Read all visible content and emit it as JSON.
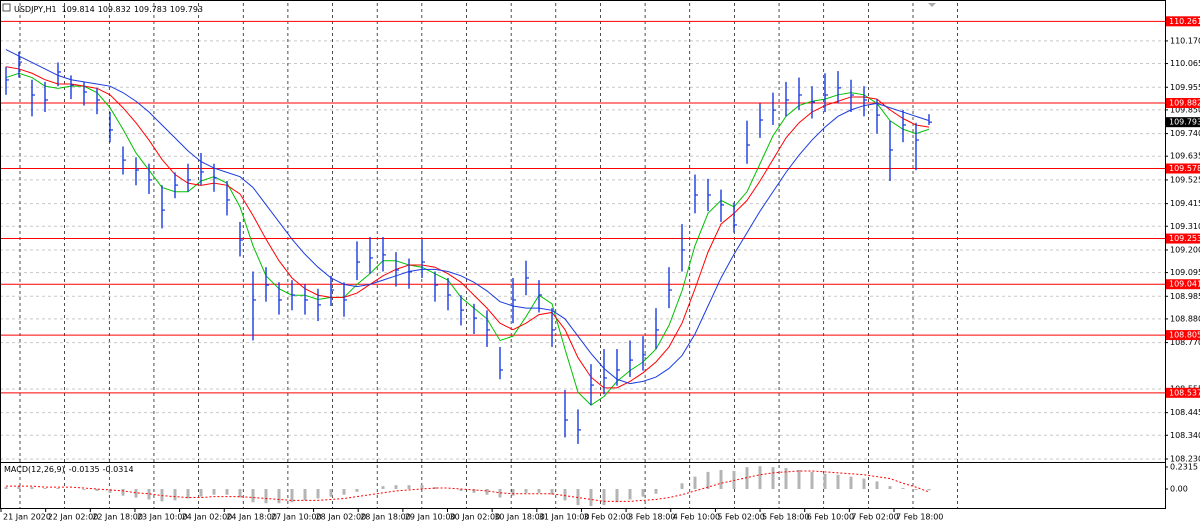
{
  "chart_data": {
    "type": "ohlc",
    "symbol": "USDJPY,H1",
    "ohlc_readout": [
      109.814,
      109.832,
      109.783,
      109.793
    ],
    "color": "#1a3be0",
    "ylim": [
      108.216,
      110.346
    ],
    "yticks": [
      {
        "value": 110.17,
        "label": "110.170"
      },
      110.065,
      109.955,
      {
        "value": 109.85,
        "label": "109.850"
      },
      {
        "value": 109.74,
        "label": "109.740"
      },
      109.635,
      109.525,
      109.415,
      {
        "value": 109.31,
        "label": "109.310"
      },
      {
        "value": 109.2,
        "label": "109.200"
      },
      109.095,
      108.985,
      {
        "value": 108.88,
        "label": "108.880"
      },
      {
        "value": 108.77,
        "label": "108.770"
      },
      108.555,
      108.445,
      {
        "value": 108.34,
        "label": "108.340"
      },
      {
        "value": 108.23,
        "label": "108.230"
      }
    ],
    "grid": true,
    "x_labels": [
      "21 Jan 2020",
      "22 Jan 02:00",
      "22 Jan 18:00",
      "23 Jan 10:00",
      "24 Jan 02:00",
      "24 Jan 18:00",
      "27 Jan 10:00",
      "28 Jan 02:00",
      "28 Jan 18:00",
      "29 Jan 10:00",
      "30 Jan 02:00",
      "30 Jan 18:00",
      "31 Jan 10:00",
      "3 Feb 02:00",
      "3 Feb 18:00",
      "4 Feb 10:00",
      "5 Feb 02:00",
      "5 Feb 18:00",
      "6 Feb 10:00",
      "7 Feb 02:00",
      "7 Feb 18:00"
    ],
    "high": [
      110.05,
      110.12,
      109.99,
      109.98,
      110.07,
      110.01,
      109.98,
      109.95,
      109.84,
      109.68,
      109.63,
      109.6,
      109.5,
      109.56,
      109.6,
      109.65,
      109.6,
      109.52,
      109.33,
      109.1,
      109.12,
      109.05,
      109.06,
      109.04,
      109.02,
      109.08,
      109.05,
      109.24,
      109.26,
      109.26,
      109.19,
      109.16,
      109.25,
      109.1,
      109.07,
      108.99,
      108.95,
      108.92,
      108.75,
      109.07,
      109.15,
      109.06,
      108.93,
      108.55,
      108.46,
      108.67,
      108.74,
      108.74,
      108.78,
      108.8,
      108.93,
      109.12,
      109.32,
      109.55,
      109.53,
      109.48,
      109.42,
      109.8,
      109.88,
      109.93,
      109.98,
      110.0,
      109.96,
      110.02,
      110.03,
      109.99,
      109.96,
      109.9,
      109.8,
      109.85,
      109.79,
      109.83
    ],
    "low": [
      109.92,
      110.0,
      109.82,
      109.84,
      109.96,
      109.9,
      109.87,
      109.83,
      109.7,
      109.55,
      109.5,
      109.46,
      109.3,
      109.44,
      109.47,
      109.5,
      109.47,
      109.36,
      109.17,
      108.78,
      108.96,
      108.9,
      108.92,
      108.9,
      108.87,
      108.94,
      108.89,
      109.06,
      109.09,
      109.1,
      109.03,
      109.02,
      109.07,
      108.96,
      108.92,
      108.85,
      108.81,
      108.75,
      108.6,
      108.86,
      108.99,
      108.91,
      108.75,
      108.33,
      108.3,
      108.48,
      108.53,
      108.57,
      108.61,
      108.64,
      108.74,
      108.93,
      109.1,
      109.37,
      109.38,
      109.33,
      109.28,
      109.6,
      109.72,
      109.78,
      109.82,
      109.85,
      109.81,
      109.84,
      109.88,
      109.84,
      109.82,
      109.74,
      109.52,
      109.7,
      109.57,
      109.78
    ],
    "close": [
      109.989,
      110.072,
      109.919,
      109.896,
      110.026,
      109.965,
      109.933,
      109.896,
      109.757,
      109.617,
      109.571,
      109.525,
      109.385,
      109.501,
      109.525,
      109.562,
      109.534,
      109.432,
      109.246,
      108.968,
      109.037,
      108.968,
      108.991,
      108.968,
      108.945,
      109.014,
      108.968,
      109.144,
      109.163,
      109.177,
      109.107,
      109.098,
      109.144,
      109.037,
      108.991,
      108.921,
      108.884,
      108.829,
      108.643,
      108.968,
      109.07,
      108.991,
      108.829,
      108.411,
      108.365,
      108.573,
      108.606,
      108.643,
      108.689,
      108.713,
      108.829,
      109.014,
      109.2,
      109.455,
      109.455,
      109.409,
      109.316,
      109.687,
      109.803,
      109.849,
      109.896,
      109.919,
      109.887,
      109.919,
      109.952,
      109.919,
      109.896,
      109.826,
      109.664,
      109.78,
      109.71,
      109.793
    ],
    "moving_averages": [
      {
        "color": "#00c000",
        "values": [
          110.0,
          110.02,
          110.0,
          109.96,
          109.95,
          109.96,
          109.96,
          109.93,
          109.86,
          109.76,
          109.65,
          109.57,
          109.49,
          109.47,
          109.47,
          109.52,
          109.54,
          109.51,
          109.4,
          109.22,
          109.08,
          109.02,
          108.99,
          108.99,
          108.97,
          108.98,
          108.98,
          109.04,
          109.09,
          109.15,
          109.15,
          109.13,
          109.12,
          109.09,
          109.06,
          108.98,
          108.93,
          108.88,
          108.78,
          108.8,
          108.89,
          108.99,
          108.95,
          108.74,
          108.54,
          108.48,
          108.52,
          108.59,
          108.64,
          108.68,
          108.74,
          108.85,
          109.01,
          109.22,
          109.37,
          109.43,
          109.4,
          109.47,
          109.6,
          109.73,
          109.82,
          109.87,
          109.89,
          109.9,
          109.92,
          109.93,
          109.92,
          109.88,
          109.8,
          109.76,
          109.74,
          109.76
        ]
      },
      {
        "color": "#ff0000",
        "values": [
          110.05,
          110.04,
          110.02,
          109.99,
          109.97,
          109.97,
          109.96,
          109.95,
          109.92,
          109.86,
          109.79,
          109.71,
          109.62,
          109.55,
          109.51,
          109.5,
          109.51,
          109.5,
          109.46,
          109.36,
          109.25,
          109.15,
          109.07,
          109.02,
          108.99,
          108.98,
          108.98,
          109.0,
          109.04,
          109.08,
          109.11,
          109.13,
          109.13,
          109.12,
          109.09,
          109.05,
          108.99,
          108.93,
          108.86,
          108.83,
          108.86,
          108.9,
          108.91,
          108.83,
          108.7,
          108.61,
          108.56,
          108.56,
          108.59,
          108.63,
          108.68,
          108.75,
          108.86,
          109.02,
          109.19,
          109.32,
          109.37,
          109.43,
          109.52,
          109.62,
          109.72,
          109.79,
          109.84,
          109.87,
          109.89,
          109.91,
          109.91,
          109.9,
          109.85,
          109.81,
          109.78,
          109.77
        ]
      },
      {
        "color": "#1a3be0",
        "values": [
          110.13,
          110.1,
          110.07,
          110.04,
          110.01,
          109.99,
          109.98,
          109.97,
          109.96,
          109.93,
          109.89,
          109.84,
          109.78,
          109.72,
          109.66,
          109.61,
          109.58,
          109.56,
          109.54,
          109.49,
          109.41,
          109.33,
          109.25,
          109.18,
          109.12,
          109.07,
          109.04,
          109.03,
          109.04,
          109.06,
          109.08,
          109.1,
          109.11,
          109.11,
          109.1,
          109.08,
          109.05,
          109.01,
          108.96,
          108.94,
          108.93,
          108.93,
          108.92,
          108.88,
          108.8,
          108.72,
          108.65,
          108.6,
          108.58,
          108.59,
          108.61,
          108.65,
          108.71,
          108.81,
          108.94,
          109.07,
          109.18,
          109.28,
          109.38,
          109.47,
          109.56,
          109.64,
          109.71,
          109.77,
          109.82,
          109.85,
          109.87,
          109.88,
          109.86,
          109.84,
          109.82,
          109.8
        ]
      }
    ],
    "levels": {
      "color": "#ff0000",
      "values": [
        110.261,
        109.882,
        109.578,
        109.253,
        109.041,
        108.805,
        108.537
      ]
    },
    "current_price": 109.793,
    "macd": {
      "title": "MACD(12,26,9)",
      "readout": [
        -0.0135,
        -0.0314
      ],
      "ylim": [
        -0.2105,
        0.2736
      ],
      "yticks": [
        0.2315,
        {
          "value": 0,
          "label": "0.00"
        }
      ],
      "bar_color": "#b4b4b4",
      "signal_color": "#ff0000",
      "values": [
        0.02,
        0.03,
        0.02,
        0.01,
        0.01,
        0.0,
        -0.01,
        -0.02,
        -0.04,
        -0.07,
        -0.09,
        -0.11,
        -0.13,
        -0.12,
        -0.1,
        -0.08,
        -0.06,
        -0.06,
        -0.09,
        -0.14,
        -0.15,
        -0.15,
        -0.14,
        -0.12,
        -0.1,
        -0.08,
        -0.06,
        -0.03,
        0.0,
        0.03,
        0.04,
        0.04,
        0.04,
        0.02,
        0.0,
        -0.02,
        -0.04,
        -0.06,
        -0.09,
        -0.07,
        -0.04,
        -0.04,
        -0.06,
        -0.12,
        -0.17,
        -0.18,
        -0.17,
        -0.14,
        -0.11,
        -0.08,
        -0.05,
        0.0,
        0.06,
        0.13,
        0.18,
        0.2,
        0.19,
        0.23,
        0.24,
        0.23,
        0.22,
        0.2,
        0.18,
        0.16,
        0.15,
        0.13,
        0.11,
        0.08,
        0.03,
        0.01,
        -0.01,
        -0.0135
      ],
      "signal": [
        0.03,
        0.03,
        0.03,
        0.02,
        0.02,
        0.02,
        0.01,
        0.0,
        -0.01,
        -0.02,
        -0.04,
        -0.05,
        -0.07,
        -0.08,
        -0.09,
        -0.09,
        -0.08,
        -0.08,
        -0.08,
        -0.09,
        -0.1,
        -0.11,
        -0.12,
        -0.12,
        -0.12,
        -0.11,
        -0.1,
        -0.08,
        -0.06,
        -0.04,
        -0.02,
        -0.01,
        0.0,
        0.01,
        0.01,
        0.0,
        -0.01,
        -0.02,
        -0.04,
        -0.05,
        -0.05,
        -0.05,
        -0.05,
        -0.07,
        -0.09,
        -0.11,
        -0.13,
        -0.13,
        -0.13,
        -0.12,
        -0.11,
        -0.09,
        -0.06,
        -0.02,
        0.02,
        0.06,
        0.09,
        0.12,
        0.15,
        0.17,
        0.18,
        0.19,
        0.19,
        0.18,
        0.17,
        0.16,
        0.15,
        0.13,
        0.11,
        0.06,
        0.02,
        -0.0314
      ]
    }
  }
}
